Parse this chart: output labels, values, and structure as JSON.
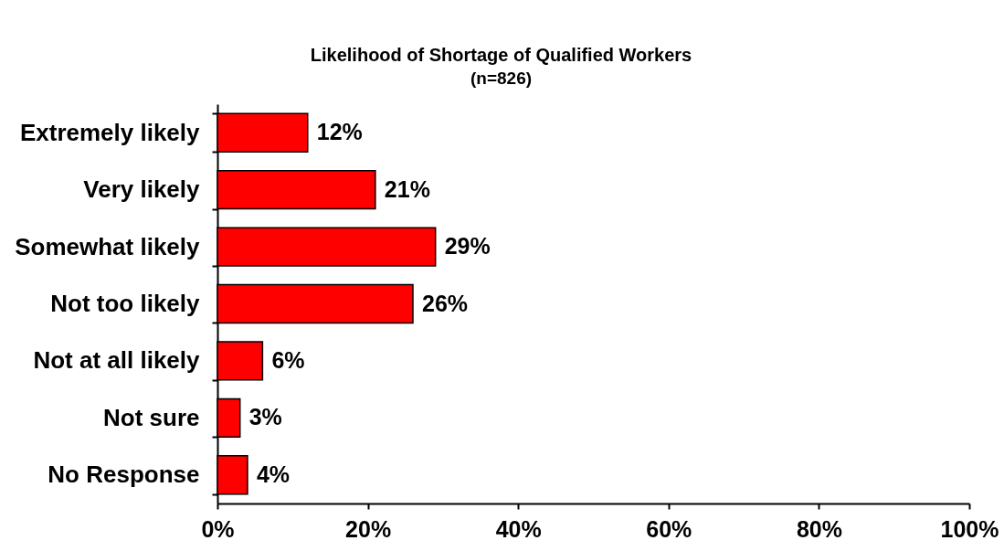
{
  "chart_data": {
    "type": "bar",
    "title": "Likelihood of Shortage of Qualified Workers",
    "subtitle": "(n=826)",
    "orientation": "horizontal",
    "categories": [
      "Extremely likely",
      "Very likely",
      "Somewhat likely",
      "Not too likely",
      "Not at all likely",
      "Not sure",
      "No Response"
    ],
    "values": [
      12,
      21,
      29,
      26,
      6,
      3,
      4
    ],
    "color": "#ff0000",
    "value_labels": [
      "12%",
      "21%",
      "29%",
      "26%",
      "6%",
      "3%",
      "4%"
    ],
    "xlim": [
      0,
      100
    ],
    "xticks": [
      {
        "value": 0,
        "label": "0%"
      },
      {
        "value": 20,
        "label": "20%"
      },
      {
        "value": 40,
        "label": "40%"
      },
      {
        "value": 60,
        "label": "60%"
      },
      {
        "value": 80,
        "label": "80%"
      },
      {
        "value": 100,
        "label": "100%"
      }
    ]
  }
}
